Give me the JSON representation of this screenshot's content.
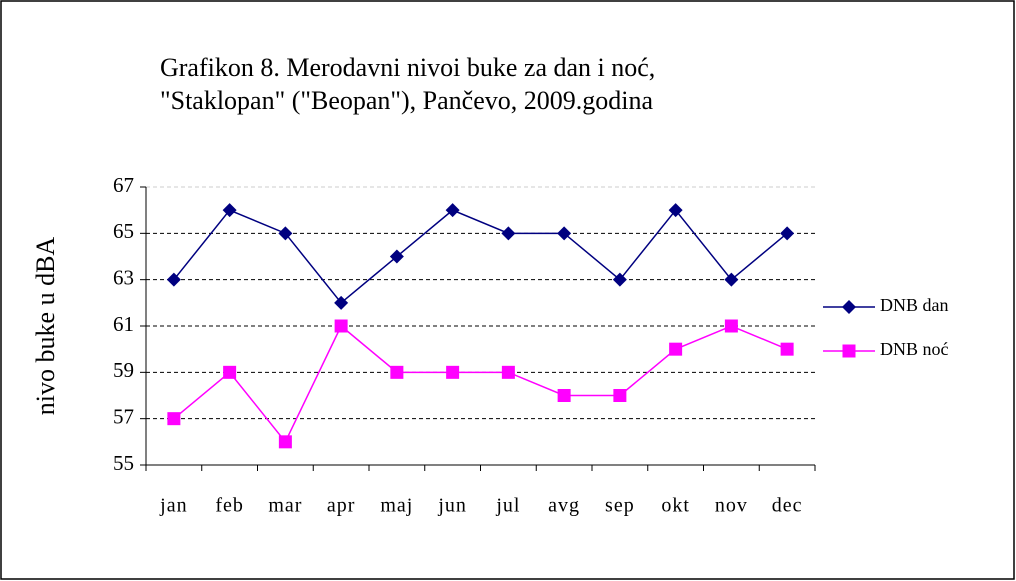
{
  "chart_data": {
    "type": "line",
    "title": "Grafikon 8. Merodavni nivoi buke za dan i noć,",
    "subtitle": "\"Staklopan\" (\"Beopan\"),  Pančevo, 2009.godina",
    "y_label": "nivo buke u dBA",
    "categories": [
      "jan",
      "feb",
      "mar",
      "apr",
      "maj",
      "jun",
      "jul",
      "avg",
      "sep",
      "okt",
      "nov",
      "dec"
    ],
    "series": [
      {
        "name": "DNB dan",
        "color": "#000080",
        "marker": "diamond",
        "values": [
          63,
          66,
          65,
          62,
          64,
          66,
          65,
          65,
          63,
          66,
          63,
          65
        ]
      },
      {
        "name": "DNB noć",
        "color": "#ff00ff",
        "marker": "square",
        "values": [
          57,
          59,
          56,
          61,
          59,
          59,
          59,
          58,
          58,
          60,
          61,
          60
        ]
      }
    ],
    "ylim": [
      55,
      67
    ],
    "yticks": [
      55,
      57,
      59,
      61,
      63,
      65,
      67
    ],
    "grid": true,
    "legend": "right"
  }
}
